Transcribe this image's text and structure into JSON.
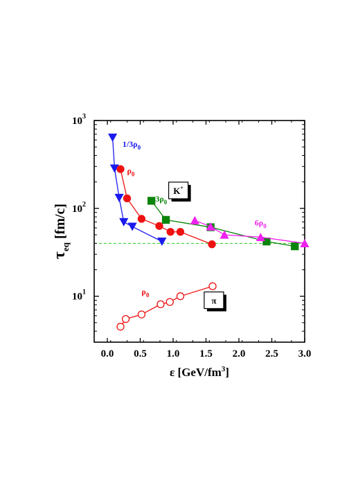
{
  "chart_data": {
    "type": "line",
    "title": "",
    "xlabel": {
      "main": "ε [GeV/fm",
      "sup": "3",
      "close": "]"
    },
    "ylabel": {
      "main": "τ",
      "sub": "eq",
      "unit": " [fm/c]"
    },
    "xlim": [
      -0.2,
      3.0
    ],
    "ylim": [
      3,
      1000
    ],
    "yscale": "log",
    "x_ticks": [
      0.0,
      0.5,
      1.0,
      1.5,
      2.0,
      2.5,
      3.0
    ],
    "x_tick_labels": [
      "0.0",
      "0.5",
      "1.0",
      "1.5",
      "2.0",
      "2.5",
      "3.0"
    ],
    "y_ticks": [
      10,
      100,
      1000
    ],
    "y_tick_labels": [
      {
        "base": "10",
        "exp": "1"
      },
      {
        "base": "10",
        "exp": "2"
      },
      {
        "base": "10",
        "exp": "3"
      }
    ],
    "grid": false,
    "reference_line": {
      "y": 40,
      "color": "#22cc22",
      "style": "dashed"
    },
    "boxes": [
      {
        "text": "K",
        "sup": "+",
        "x": 1.08,
        "y": 160
      },
      {
        "text": "π",
        "sup": "",
        "x": 1.62,
        "y": 9.0
      }
    ],
    "series": [
      {
        "name": "1/3ρ0",
        "label_text": "1/3ρ",
        "label_sub": "0",
        "marker": "triangle-down",
        "filled": true,
        "color": "#1a1aee",
        "label_pos": [
          0.23,
          500
        ],
        "x": [
          0.08,
          0.11,
          0.18,
          0.25,
          0.38,
          0.83
        ],
        "y": [
          640,
          285,
          132,
          70,
          62,
          42
        ]
      },
      {
        "name": "ρ0",
        "label_text": "ρ",
        "label_sub": "0",
        "marker": "circle",
        "filled": true,
        "color": "#ee1111",
        "label_pos": [
          0.3,
          250
        ],
        "x": [
          0.2,
          0.3,
          0.52,
          0.79,
          0.96,
          1.11,
          1.59
        ],
        "y": [
          280,
          130,
          76,
          63,
          54,
          54,
          39
        ]
      },
      {
        "name": "3ρ0",
        "label_text": "3ρ",
        "label_sub": "0",
        "marker": "square",
        "filled": true,
        "color": "#0a840a",
        "label_pos": [
          0.73,
          120
        ],
        "x": [
          0.67,
          0.89,
          1.57,
          2.42,
          2.85
        ],
        "y": [
          122,
          74,
          61,
          42,
          37
        ]
      },
      {
        "name": "6ρ0",
        "label_text": "6ρ",
        "label_sub": "0",
        "marker": "triangle-up",
        "filled": true,
        "color": "#ee22ee",
        "label_pos": [
          2.24,
          64
        ],
        "x": [
          1.33,
          1.57,
          1.78,
          2.33,
          3.0
        ],
        "y": [
          73,
          62,
          50,
          47,
          40
        ]
      },
      {
        "name": "ρ0 (π)",
        "label_text": "ρ",
        "label_sub": "0",
        "marker": "circle",
        "filled": false,
        "color": "#ee1111",
        "label_pos": [
          0.52,
          10.5
        ],
        "x": [
          0.2,
          0.28,
          0.52,
          0.81,
          0.95,
          1.11,
          1.6
        ],
        "y": [
          4.5,
          5.5,
          6.2,
          8.1,
          8.6,
          10,
          13
        ]
      }
    ]
  }
}
